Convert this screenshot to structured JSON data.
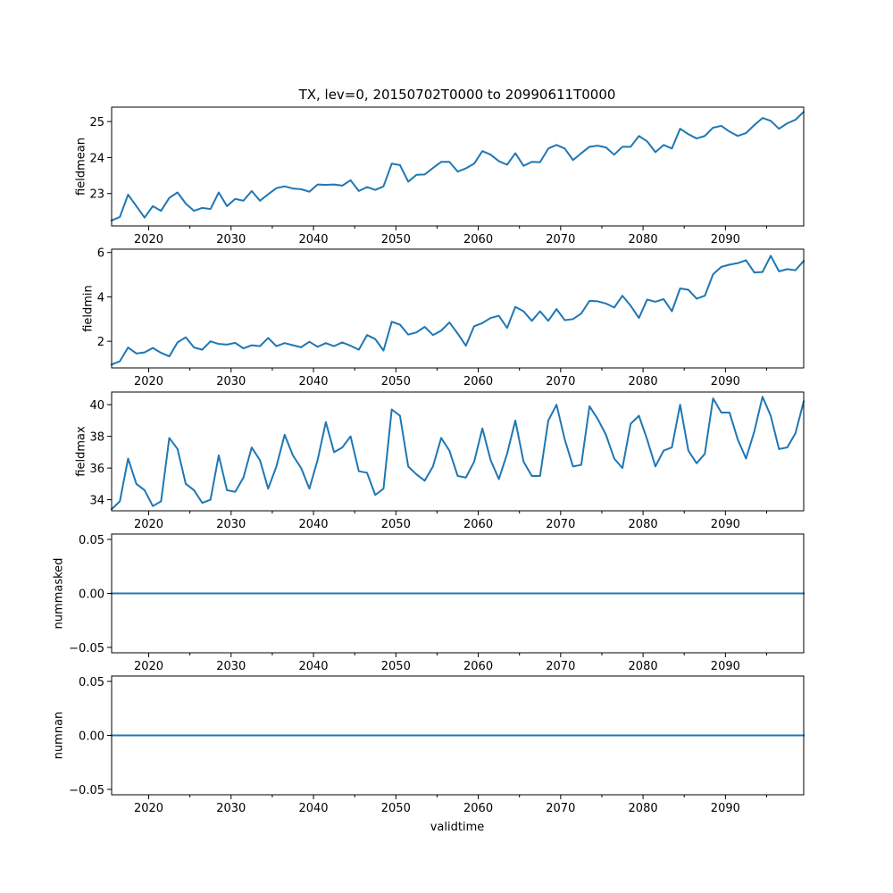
{
  "chart_data": {
    "title": "TX, lev=0, 20150702T0000 to 20990611T0000",
    "xlabel": "validtime",
    "type": "line",
    "line_color": "#1f77b4",
    "x": [
      2015.5,
      2016.5,
      2017.5,
      2018.5,
      2019.5,
      2020.5,
      2021.5,
      2022.5,
      2023.5,
      2024.5,
      2025.5,
      2026.5,
      2027.5,
      2028.5,
      2029.5,
      2030.5,
      2031.5,
      2032.5,
      2033.5,
      2034.5,
      2035.5,
      2036.5,
      2037.5,
      2038.5,
      2039.5,
      2040.5,
      2041.5,
      2042.5,
      2043.5,
      2044.5,
      2045.5,
      2046.5,
      2047.5,
      2048.5,
      2049.5,
      2050.5,
      2051.5,
      2052.5,
      2053.5,
      2054.5,
      2055.5,
      2056.5,
      2057.5,
      2058.5,
      2059.5,
      2060.5,
      2061.5,
      2062.5,
      2063.5,
      2064.5,
      2065.5,
      2066.5,
      2067.5,
      2068.5,
      2069.5,
      2070.5,
      2071.5,
      2072.5,
      2073.5,
      2074.5,
      2075.5,
      2076.5,
      2077.5,
      2078.5,
      2079.5,
      2080.5,
      2081.5,
      2082.5,
      2083.5,
      2084.5,
      2085.5,
      2086.5,
      2087.5,
      2088.5,
      2089.5,
      2090.5,
      2091.5,
      2092.5,
      2093.5,
      2094.5,
      2095.5,
      2096.5,
      2097.5,
      2098.5,
      2099.5
    ],
    "xlim": [
      2015.5,
      2099.5
    ],
    "xticks": [
      2020,
      2030,
      2040,
      2050,
      2060,
      2070,
      2080,
      2090
    ],
    "xtick_labels": [
      "2020",
      "2030",
      "2040",
      "2050",
      "2060",
      "2070",
      "2080",
      "2090"
    ],
    "minor_xticks": [
      2025,
      2035,
      2045,
      2055,
      2065,
      2075,
      2085,
      2095
    ],
    "series": [
      {
        "name": "fieldmean",
        "ylabel": "fieldmean",
        "ylim": [
          22.1,
          25.4
        ],
        "yticks": [
          23,
          24,
          25
        ],
        "ytick_labels": [
          "23",
          "24",
          "25"
        ],
        "values": [
          22.25,
          22.35,
          22.97,
          22.65,
          22.33,
          22.65,
          22.52,
          22.88,
          23.03,
          22.72,
          22.52,
          22.6,
          22.57,
          23.03,
          22.65,
          22.85,
          22.8,
          23.07,
          22.8,
          22.98,
          23.15,
          23.2,
          23.14,
          23.12,
          23.05,
          23.25,
          23.24,
          23.25,
          23.22,
          23.37,
          23.07,
          23.18,
          23.1,
          23.2,
          23.83,
          23.79,
          23.33,
          23.52,
          23.53,
          23.71,
          23.88,
          23.88,
          23.61,
          23.7,
          23.83,
          24.18,
          24.08,
          23.9,
          23.8,
          24.12,
          23.77,
          23.88,
          23.87,
          24.25,
          24.35,
          24.25,
          23.93,
          24.12,
          24.3,
          24.33,
          24.28,
          24.08,
          24.3,
          24.3,
          24.6,
          24.45,
          24.15,
          24.35,
          24.25,
          24.8,
          24.65,
          24.53,
          24.6,
          24.83,
          24.88,
          24.72,
          24.6,
          24.68,
          24.9,
          25.1,
          25.02,
          24.8,
          24.95,
          25.05,
          25.27
        ]
      },
      {
        "name": "fieldmin",
        "ylabel": "fieldmin",
        "ylim": [
          0.8,
          6.15
        ],
        "yticks": [
          2,
          4,
          6
        ],
        "ytick_labels": [
          "2",
          "4",
          "6"
        ],
        "values": [
          0.95,
          1.1,
          1.72,
          1.45,
          1.5,
          1.7,
          1.48,
          1.32,
          1.95,
          2.18,
          1.72,
          1.62,
          2.0,
          1.88,
          1.85,
          1.93,
          1.68,
          1.82,
          1.78,
          2.15,
          1.78,
          1.92,
          1.82,
          1.73,
          1.98,
          1.75,
          1.92,
          1.78,
          1.95,
          1.8,
          1.62,
          2.28,
          2.1,
          1.58,
          2.88,
          2.75,
          2.3,
          2.4,
          2.65,
          2.28,
          2.48,
          2.85,
          2.35,
          1.8,
          2.68,
          2.82,
          3.05,
          3.15,
          2.6,
          3.55,
          3.35,
          2.92,
          3.35,
          2.92,
          3.45,
          2.95,
          3.0,
          3.25,
          3.82,
          3.8,
          3.7,
          3.52,
          4.05,
          3.6,
          3.05,
          3.88,
          3.78,
          3.9,
          3.35,
          4.38,
          4.32,
          3.92,
          4.05,
          5.02,
          5.35,
          5.45,
          5.52,
          5.65,
          5.1,
          5.12,
          5.85,
          5.15,
          5.25,
          5.2,
          5.62
        ]
      },
      {
        "name": "fieldmax",
        "ylabel": "fieldmax",
        "ylim": [
          33.3,
          40.8
        ],
        "yticks": [
          34,
          36,
          38,
          40
        ],
        "ytick_labels": [
          "34",
          "36",
          "38",
          "40"
        ],
        "values": [
          33.4,
          33.9,
          36.6,
          35.0,
          34.6,
          33.6,
          33.9,
          37.9,
          37.2,
          35.0,
          34.6,
          33.8,
          34.0,
          36.8,
          34.6,
          34.5,
          35.4,
          37.3,
          36.5,
          34.7,
          36.1,
          38.1,
          36.8,
          36.0,
          34.7,
          36.5,
          38.9,
          37.0,
          37.3,
          38.0,
          35.8,
          35.7,
          34.3,
          34.7,
          39.7,
          39.3,
          36.1,
          35.6,
          35.2,
          36.1,
          37.9,
          37.1,
          35.5,
          35.4,
          36.4,
          38.5,
          36.5,
          35.3,
          36.9,
          39.0,
          36.4,
          35.5,
          35.5,
          39.0,
          40.0,
          37.8,
          36.1,
          36.2,
          39.9,
          39.1,
          38.1,
          36.6,
          36.0,
          38.8,
          39.3,
          37.8,
          36.1,
          37.1,
          37.3,
          40.0,
          37.1,
          36.3,
          36.9,
          40.4,
          39.5,
          39.5,
          37.8,
          36.6,
          38.3,
          40.5,
          39.3,
          37.2,
          37.3,
          38.2,
          40.2
        ]
      },
      {
        "name": "nummasked",
        "ylabel": "nummasked",
        "ylim": [
          -0.055,
          0.055
        ],
        "yticks": [
          -0.05,
          0.0,
          0.05
        ],
        "ytick_labels": [
          "−0.05",
          "0.00",
          "0.05"
        ],
        "constant": 0
      },
      {
        "name": "numnan",
        "ylabel": "numnan",
        "ylim": [
          -0.055,
          0.055
        ],
        "yticks": [
          -0.05,
          0.0,
          0.05
        ],
        "ytick_labels": [
          "−0.05",
          "0.00",
          "0.05"
        ],
        "constant": 0
      }
    ]
  }
}
